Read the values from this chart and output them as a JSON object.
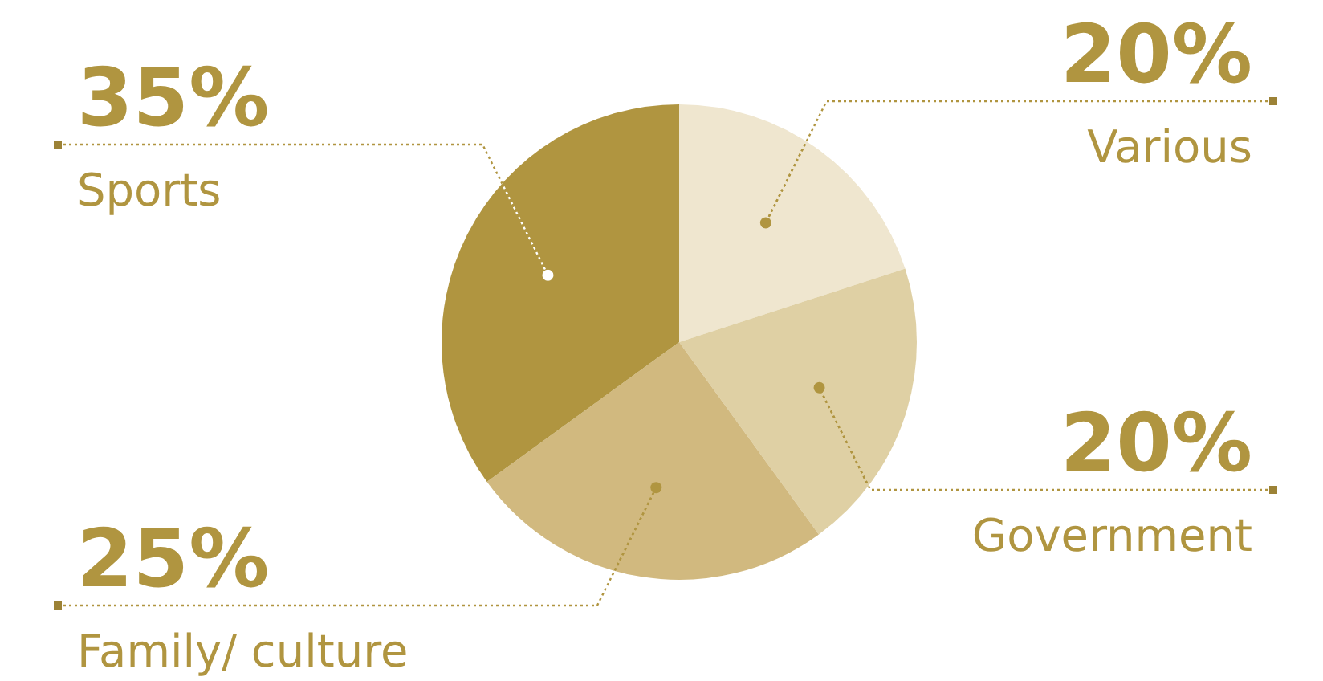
{
  "chart_data": {
    "type": "pie",
    "categories": [
      "Various",
      "Government",
      "Family/ culture",
      "Sports"
    ],
    "values": [
      20,
      20,
      25,
      35
    ],
    "colors": [
      "#efe6cf",
      "#dfd0a4",
      "#d1b97f",
      "#b09540"
    ],
    "value_labels": [
      "20%",
      "20%",
      "25%",
      "35%"
    ]
  }
}
